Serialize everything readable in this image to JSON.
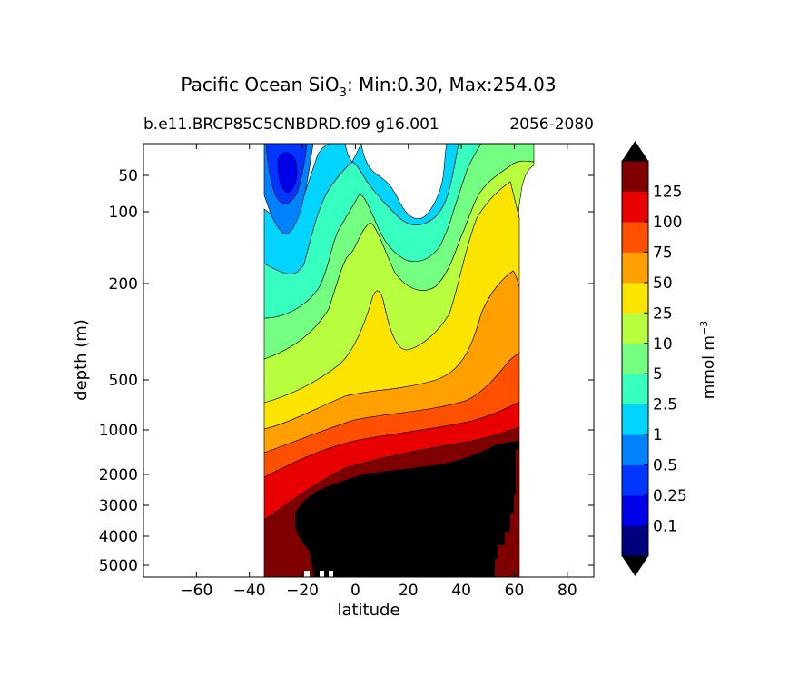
{
  "chart_data": {
    "type": "heatmap",
    "title_parts": [
      "Pacific Ocean SiO",
      "3",
      ": Min:0.30, Max:254.03"
    ],
    "subtitle_left": "b.e11.BRCP85C5CNBDRD.f09 g16.001",
    "subtitle_right": "2056-2080",
    "xlabel": "latitude",
    "ylabel": "depth (m)",
    "xlim": [
      -80,
      90
    ],
    "x_ticks": [
      -60,
      -40,
      -20,
      0,
      20,
      40,
      60,
      80
    ],
    "x_tick_labels": [
      "−60",
      "−40",
      "−20",
      "0",
      "20",
      "40",
      "60",
      "80"
    ],
    "y_scale": "nonlinear",
    "y_inverted": true,
    "y_ticks": [
      50,
      100,
      200,
      500,
      1000,
      2000,
      3000,
      4000,
      5000
    ],
    "y_tick_labels": [
      "50",
      "100",
      "200",
      "500",
      "1000",
      "2000",
      "3000",
      "4000",
      "5000"
    ],
    "colorbar": {
      "label_parts": [
        "mmol m",
        "−3"
      ],
      "levels": [
        "0.1",
        "0.25",
        "0.5",
        "1",
        "2.5",
        "5",
        "10",
        "25",
        "50",
        "75",
        "100",
        "125"
      ],
      "colors": [
        "#00007f",
        "#0000e8",
        "#0036ff",
        "#0082ff",
        "#00d4ff",
        "#36ffc0",
        "#74ff83",
        "#b8ff3f",
        "#fbe400",
        "#ff9f00",
        "#ff4f00",
        "#e80000",
        "#7f0000"
      ],
      "under_color": "#000000",
      "over_color": "#000000",
      "extend": "both"
    },
    "colors": {
      "land_mask": "#000000",
      "contour_line": "#000000",
      "background": "#ffffff"
    }
  }
}
